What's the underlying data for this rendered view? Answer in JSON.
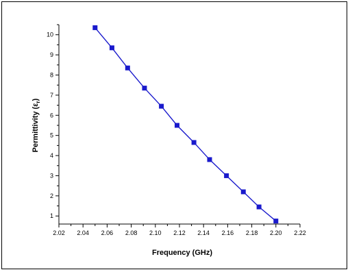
{
  "chart_data": {
    "type": "line",
    "title": "",
    "xlabel": "Frequency (GHz)",
    "ylabel": "Permittivity (ε",
    "ylabel_sub": "r",
    "ylabel_close": ")",
    "xlim": [
      2.02,
      2.22
    ],
    "ylim": [
      0.6,
      10.5
    ],
    "x_ticks": [
      "2.02",
      "2.04",
      "2.06",
      "2.08",
      "2.10",
      "2.12",
      "2.14",
      "2.16",
      "2.18",
      "2.20",
      "2.22"
    ],
    "y_ticks": [
      "1",
      "2",
      "3",
      "4",
      "5",
      "6",
      "7",
      "8",
      "9",
      "10"
    ],
    "series": [
      {
        "x": [
          2.05,
          2.064,
          2.077,
          2.091,
          2.105,
          2.118,
          2.132,
          2.145,
          2.159,
          2.173,
          2.186,
          2.2
        ],
        "y": [
          10.35,
          9.35,
          8.35,
          7.35,
          6.45,
          5.5,
          4.65,
          3.8,
          3.0,
          2.2,
          1.45,
          0.75
        ]
      }
    ],
    "colors": {
      "series": "#1a1acc",
      "axis": "#000000"
    },
    "grid": false
  }
}
